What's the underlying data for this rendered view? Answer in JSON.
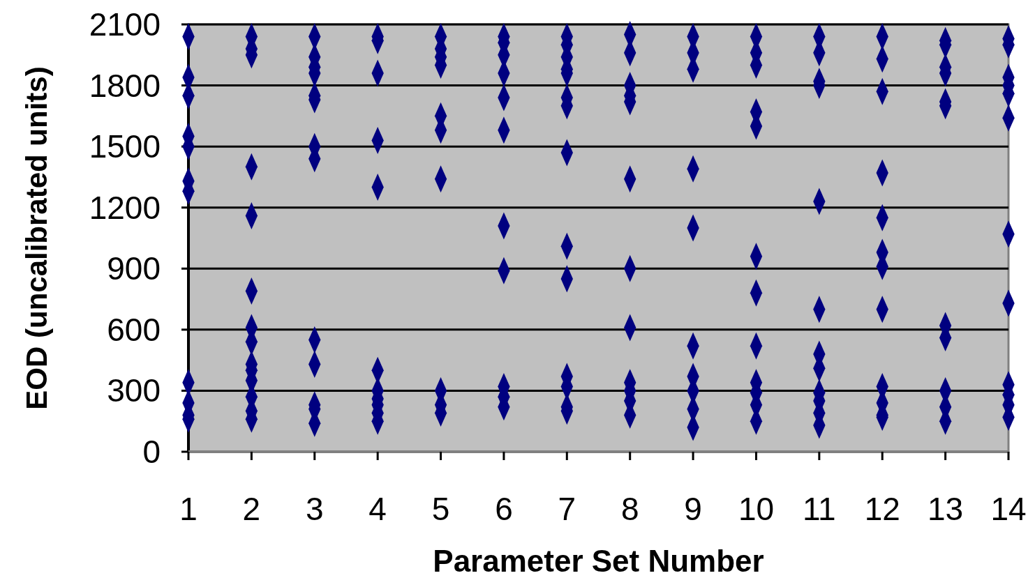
{
  "chart_data": {
    "type": "scatter",
    "xlabel": "Parameter Set Number",
    "ylabel": "EOD (uncalibrated units)",
    "xlim": [
      1,
      14
    ],
    "xticks": [
      1,
      2,
      3,
      4,
      5,
      6,
      7,
      8,
      9,
      10,
      11,
      12,
      13,
      14
    ],
    "ylim": [
      0,
      2100
    ],
    "yticks": [
      0,
      300,
      600,
      900,
      1200,
      1500,
      1800,
      2100
    ],
    "grid": "y",
    "marker": "diamond",
    "series": [
      {
        "color": "#000080",
        "x": [
          1,
          1,
          1,
          1,
          1,
          1,
          1,
          1,
          1,
          1,
          1,
          2,
          2,
          2,
          2,
          2,
          2,
          2,
          2,
          2,
          2,
          2,
          2,
          2,
          2,
          3,
          3,
          3,
          3,
          3,
          3,
          3,
          3,
          3,
          3,
          3,
          3,
          3,
          4,
          4,
          4,
          4,
          4,
          4,
          4,
          4,
          4,
          4,
          4,
          5,
          5,
          5,
          5,
          5,
          5,
          5,
          5,
          5,
          5,
          6,
          6,
          6,
          6,
          6,
          6,
          6,
          6,
          6,
          6,
          6,
          7,
          7,
          7,
          7,
          7,
          7,
          7,
          7,
          7,
          7,
          7,
          7,
          7,
          7,
          8,
          8,
          8,
          8,
          8,
          8,
          8,
          8,
          8,
          8,
          8,
          8,
          9,
          9,
          9,
          9,
          9,
          9,
          9,
          9,
          9,
          9,
          10,
          10,
          10,
          10,
          10,
          10,
          10,
          10,
          10,
          10,
          10,
          10,
          11,
          11,
          11,
          11,
          11,
          11,
          11,
          11,
          11,
          11,
          11,
          11,
          12,
          12,
          12,
          12,
          12,
          12,
          12,
          12,
          12,
          12,
          12,
          12,
          13,
          13,
          13,
          13,
          13,
          13,
          13,
          13,
          13,
          13,
          13,
          14,
          14,
          14,
          14,
          14,
          14,
          14,
          14,
          14,
          14,
          14,
          14
        ],
        "values": [
          2040,
          1840,
          1750,
          1550,
          1500,
          1330,
          1280,
          340,
          240,
          180,
          160,
          2040,
          1980,
          1950,
          1400,
          1160,
          790,
          610,
          540,
          430,
          400,
          350,
          270,
          200,
          160,
          2040,
          1940,
          1890,
          1860,
          1750,
          1730,
          1500,
          1440,
          550,
          430,
          230,
          210,
          140,
          2040,
          2020,
          1860,
          1530,
          1300,
          400,
          300,
          260,
          230,
          190,
          150,
          2040,
          1980,
          1940,
          1900,
          1650,
          1580,
          1340,
          300,
          230,
          190,
          2040,
          2010,
          1950,
          1860,
          1740,
          1580,
          1110,
          890,
          320,
          270,
          220,
          2040,
          2000,
          1940,
          1880,
          1860,
          1740,
          1700,
          1470,
          1010,
          850,
          370,
          320,
          220,
          200,
          2050,
          1960,
          1800,
          1750,
          1720,
          1340,
          900,
          610,
          340,
          300,
          250,
          180,
          2040,
          1960,
          1880,
          1390,
          1100,
          520,
          370,
          300,
          210,
          120,
          2040,
          1960,
          1900,
          1670,
          1600,
          960,
          780,
          520,
          340,
          290,
          230,
          150,
          2040,
          1960,
          1820,
          1800,
          1230,
          700,
          480,
          410,
          290,
          250,
          190,
          130,
          2040,
          1930,
          1770,
          1370,
          1150,
          980,
          910,
          700,
          320,
          240,
          180,
          170,
          2020,
          2000,
          1890,
          1860,
          1720,
          1700,
          620,
          560,
          300,
          220,
          150,
          2030,
          2000,
          1840,
          1800,
          1760,
          1640,
          1070,
          730,
          330,
          280,
          230,
          170
        ]
      }
    ]
  }
}
